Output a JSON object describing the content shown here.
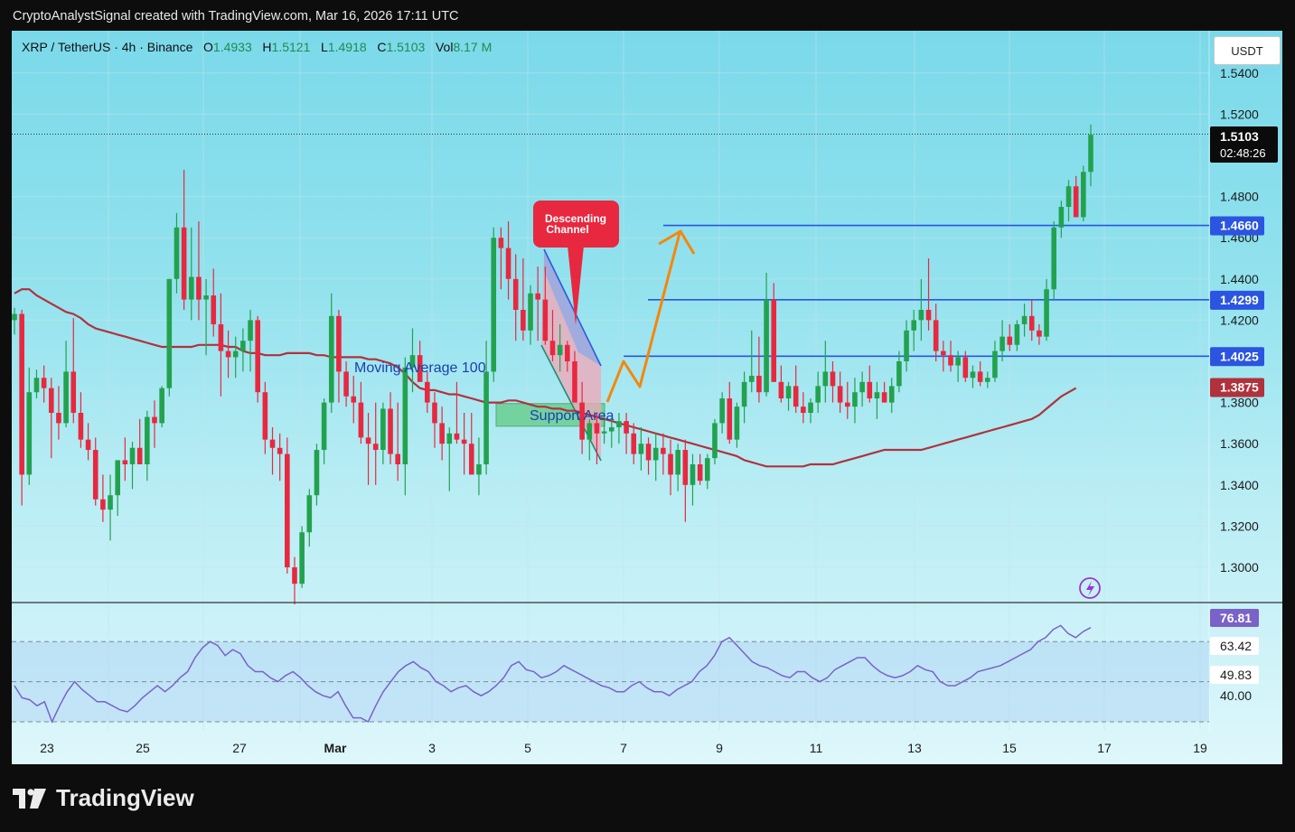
{
  "header": {
    "text": "CryptoAnalystSignal created with TradingView.com, Mar 16, 2026 17:11 UTC"
  },
  "symbol": {
    "title": "XRP / TetherUS · 4h · Binance",
    "o_label": "O",
    "o": "1.4933",
    "h_label": "H",
    "h": "1.5121",
    "l_label": "L",
    "l": "1.4918",
    "c_label": "C",
    "c": "1.5103",
    "vol_label": "Vol",
    "vol": "8.17 M"
  },
  "currency": "USDT",
  "footer": {
    "brand": "TradingView"
  },
  "colors": {
    "up": "#22a24e",
    "down": "#e8283f",
    "ma": "#b0323c",
    "levels": "#2b55e0",
    "rsi": "#7a62c8",
    "arrow": "#f5870a"
  },
  "chart_data": [
    {
      "type": "candlestick",
      "ylim": [
        1.28,
        1.56
      ],
      "grid": true,
      "y_ticks": [
        "1.5400",
        "1.5200",
        "1.4800",
        "1.4600",
        "1.4400",
        "1.4200",
        "1.3800",
        "1.3600",
        "1.3400",
        "1.3200",
        "1.3000"
      ],
      "x_ticks": [
        "23",
        "25",
        "27",
        "Mar",
        "3",
        "5",
        "7",
        "9",
        "11",
        "13",
        "15",
        "17",
        "19"
      ],
      "price_labels": [
        {
          "value": "1.5103",
          "sub": "02:48:26",
          "kind": "last"
        },
        {
          "value": "1.4660",
          "kind": "level"
        },
        {
          "value": "1.4299",
          "kind": "level"
        },
        {
          "value": "1.4025",
          "kind": "level"
        },
        {
          "value": "1.3875",
          "kind": "ma"
        }
      ],
      "horizontal_levels": [
        1.466,
        1.4299,
        1.4025
      ],
      "annotations": {
        "callout": "Descending Channel",
        "ma_label": "Moving Average 100",
        "support_label": "Support Area"
      },
      "candles_ohlc": [
        [
          1.42,
          1.426,
          1.413,
          1.423
        ],
        [
          1.423,
          1.425,
          1.33,
          1.345
        ],
        [
          1.345,
          1.397,
          1.34,
          1.385
        ],
        [
          1.385,
          1.396,
          1.382,
          1.392
        ],
        [
          1.392,
          1.398,
          1.38,
          1.387
        ],
        [
          1.387,
          1.392,
          1.353,
          1.375
        ],
        [
          1.375,
          1.388,
          1.362,
          1.37
        ],
        [
          1.37,
          1.41,
          1.368,
          1.395
        ],
        [
          1.395,
          1.421,
          1.37,
          1.375
        ],
        [
          1.375,
          1.385,
          1.358,
          1.362
        ],
        [
          1.362,
          1.37,
          1.352,
          1.357
        ],
        [
          1.357,
          1.363,
          1.33,
          1.333
        ],
        [
          1.333,
          1.345,
          1.322,
          1.328
        ],
        [
          1.328,
          1.345,
          1.313,
          1.335
        ],
        [
          1.335,
          1.352,
          1.325,
          1.352
        ],
        [
          1.352,
          1.363,
          1.342,
          1.35
        ],
        [
          1.35,
          1.361,
          1.338,
          1.358
        ],
        [
          1.358,
          1.372,
          1.352,
          1.35
        ],
        [
          1.35,
          1.376,
          1.342,
          1.373
        ],
        [
          1.373,
          1.381,
          1.358,
          1.37
        ],
        [
          1.37,
          1.388,
          1.368,
          1.387
        ],
        [
          1.387,
          1.433,
          1.383,
          1.44
        ],
        [
          1.44,
          1.472,
          1.433,
          1.465
        ],
        [
          1.465,
          1.493,
          1.425,
          1.43
        ],
        [
          1.43,
          1.465,
          1.42,
          1.441
        ],
        [
          1.441,
          1.468,
          1.42,
          1.43
        ],
        [
          1.43,
          1.44,
          1.403,
          1.432
        ],
        [
          1.432,
          1.445,
          1.412,
          1.418
        ],
        [
          1.418,
          1.433,
          1.383,
          1.405
        ],
        [
          1.405,
          1.415,
          1.392,
          1.402
        ],
        [
          1.402,
          1.412,
          1.392,
          1.405
        ],
        [
          1.405,
          1.416,
          1.395,
          1.41
        ],
        [
          1.41,
          1.425,
          1.395,
          1.42
        ],
        [
          1.42,
          1.422,
          1.38,
          1.385
        ],
        [
          1.385,
          1.39,
          1.355,
          1.362
        ],
        [
          1.362,
          1.368,
          1.345,
          1.358
        ],
        [
          1.358,
          1.365,
          1.342,
          1.355
        ],
        [
          1.355,
          1.363,
          1.297,
          1.3
        ],
        [
          1.3,
          1.305,
          1.282,
          1.292
        ],
        [
          1.292,
          1.32,
          1.29,
          1.317
        ],
        [
          1.317,
          1.338,
          1.31,
          1.335
        ],
        [
          1.335,
          1.36,
          1.33,
          1.357
        ],
        [
          1.357,
          1.382,
          1.35,
          1.38
        ],
        [
          1.38,
          1.433,
          1.375,
          1.422
        ],
        [
          1.422,
          1.425,
          1.38,
          1.395
        ],
        [
          1.395,
          1.4,
          1.378,
          1.383
        ],
        [
          1.383,
          1.393,
          1.37,
          1.38
        ],
        [
          1.38,
          1.39,
          1.36,
          1.363
        ],
        [
          1.363,
          1.375,
          1.34,
          1.36
        ],
        [
          1.36,
          1.38,
          1.34,
          1.357
        ],
        [
          1.357,
          1.38,
          1.35,
          1.377
        ],
        [
          1.377,
          1.385,
          1.35,
          1.355
        ],
        [
          1.355,
          1.38,
          1.342,
          1.35
        ],
        [
          1.35,
          1.402,
          1.335,
          1.397
        ],
        [
          1.397,
          1.416,
          1.385,
          1.403
        ],
        [
          1.403,
          1.41,
          1.39,
          1.39
        ],
        [
          1.39,
          1.395,
          1.375,
          1.38
        ],
        [
          1.38,
          1.385,
          1.358,
          1.37
        ],
        [
          1.37,
          1.378,
          1.352,
          1.36
        ],
        [
          1.36,
          1.368,
          1.337,
          1.365
        ],
        [
          1.365,
          1.39,
          1.36,
          1.362
        ],
        [
          1.362,
          1.375,
          1.345,
          1.36
        ],
        [
          1.36,
          1.375,
          1.355,
          1.345
        ],
        [
          1.345,
          1.363,
          1.335,
          1.35
        ],
        [
          1.35,
          1.41,
          1.345,
          1.395
        ],
        [
          1.395,
          1.465,
          1.39,
          1.46
        ],
        [
          1.46,
          1.465,
          1.435,
          1.455
        ],
        [
          1.455,
          1.468,
          1.43,
          1.44
        ],
        [
          1.44,
          1.452,
          1.41,
          1.425
        ],
        [
          1.425,
          1.45,
          1.41,
          1.415
        ],
        [
          1.415,
          1.437,
          1.408,
          1.433
        ],
        [
          1.433,
          1.446,
          1.41,
          1.43
        ],
        [
          1.43,
          1.446,
          1.408,
          1.41
        ],
        [
          1.41,
          1.425,
          1.4,
          1.403
        ],
        [
          1.403,
          1.418,
          1.395,
          1.408
        ],
        [
          1.408,
          1.41,
          1.395,
          1.4
        ],
        [
          1.4,
          1.405,
          1.38,
          1.38
        ],
        [
          1.38,
          1.39,
          1.355,
          1.362
        ],
        [
          1.362,
          1.372,
          1.352,
          1.37
        ],
        [
          1.37,
          1.375,
          1.35,
          1.365
        ],
        [
          1.365,
          1.375,
          1.36,
          1.366
        ],
        [
          1.366,
          1.372,
          1.358,
          1.368
        ],
        [
          1.368,
          1.375,
          1.36,
          1.371
        ],
        [
          1.371,
          1.375,
          1.355,
          1.365
        ],
        [
          1.365,
          1.37,
          1.35,
          1.355
        ],
        [
          1.355,
          1.368,
          1.347,
          1.36
        ],
        [
          1.36,
          1.363,
          1.345,
          1.352
        ],
        [
          1.352,
          1.365,
          1.342,
          1.358
        ],
        [
          1.358,
          1.365,
          1.345,
          1.355
        ],
        [
          1.355,
          1.362,
          1.335,
          1.345
        ],
        [
          1.345,
          1.36,
          1.337,
          1.357
        ],
        [
          1.357,
          1.362,
          1.322,
          1.34
        ],
        [
          1.34,
          1.355,
          1.33,
          1.35
        ],
        [
          1.35,
          1.355,
          1.34,
          1.342
        ],
        [
          1.342,
          1.355,
          1.338,
          1.353
        ],
        [
          1.353,
          1.372,
          1.35,
          1.37
        ],
        [
          1.37,
          1.385,
          1.365,
          1.382
        ],
        [
          1.382,
          1.39,
          1.36,
          1.362
        ],
        [
          1.362,
          1.38,
          1.358,
          1.378
        ],
        [
          1.378,
          1.395,
          1.37,
          1.39
        ],
        [
          1.39,
          1.415,
          1.385,
          1.393
        ],
        [
          1.393,
          1.412,
          1.38,
          1.385
        ],
        [
          1.385,
          1.443,
          1.383,
          1.43
        ],
        [
          1.43,
          1.438,
          1.39,
          1.39
        ],
        [
          1.39,
          1.398,
          1.38,
          1.382
        ],
        [
          1.382,
          1.39,
          1.376,
          1.388
        ],
        [
          1.388,
          1.398,
          1.375,
          1.378
        ],
        [
          1.378,
          1.385,
          1.37,
          1.375
        ],
        [
          1.375,
          1.382,
          1.37,
          1.38
        ],
        [
          1.38,
          1.395,
          1.375,
          1.388
        ],
        [
          1.388,
          1.41,
          1.38,
          1.395
        ],
        [
          1.395,
          1.4,
          1.38,
          1.388
        ],
        [
          1.388,
          1.395,
          1.375,
          1.38
        ],
        [
          1.38,
          1.39,
          1.372,
          1.378
        ],
        [
          1.378,
          1.392,
          1.37,
          1.385
        ],
        [
          1.385,
          1.395,
          1.378,
          1.39
        ],
        [
          1.39,
          1.398,
          1.38,
          1.382
        ],
        [
          1.382,
          1.39,
          1.372,
          1.385
        ],
        [
          1.385,
          1.39,
          1.38,
          1.38
        ],
        [
          1.38,
          1.392,
          1.375,
          1.388
        ],
        [
          1.388,
          1.405,
          1.385,
          1.4
        ],
        [
          1.4,
          1.42,
          1.395,
          1.415
        ],
        [
          1.415,
          1.425,
          1.405,
          1.42
        ],
        [
          1.42,
          1.44,
          1.41,
          1.425
        ],
        [
          1.425,
          1.45,
          1.415,
          1.42
        ],
        [
          1.42,
          1.428,
          1.4,
          1.405
        ],
        [
          1.405,
          1.41,
          1.395,
          1.403
        ],
        [
          1.403,
          1.41,
          1.395,
          1.398
        ],
        [
          1.398,
          1.405,
          1.39,
          1.402
        ],
        [
          1.402,
          1.405,
          1.39,
          1.392
        ],
        [
          1.392,
          1.398,
          1.387,
          1.395
        ],
        [
          1.395,
          1.4,
          1.388,
          1.39
        ],
        [
          1.39,
          1.395,
          1.387,
          1.392
        ],
        [
          1.392,
          1.41,
          1.39,
          1.405
        ],
        [
          1.405,
          1.42,
          1.4,
          1.412
        ],
        [
          1.412,
          1.418,
          1.405,
          1.408
        ],
        [
          1.408,
          1.42,
          1.405,
          1.418
        ],
        [
          1.418,
          1.428,
          1.412,
          1.422
        ],
        [
          1.422,
          1.43,
          1.41,
          1.415
        ],
        [
          1.415,
          1.418,
          1.408,
          1.412
        ],
        [
          1.412,
          1.44,
          1.41,
          1.435
        ],
        [
          1.435,
          1.468,
          1.43,
          1.465
        ],
        [
          1.465,
          1.478,
          1.46,
          1.475
        ],
        [
          1.475,
          1.488,
          1.468,
          1.485
        ],
        [
          1.485,
          1.49,
          1.47,
          1.47
        ],
        [
          1.47,
          1.495,
          1.468,
          1.492
        ],
        [
          1.492,
          1.515,
          1.485,
          1.51
        ]
      ],
      "ma100": [
        1.433,
        1.435,
        1.435,
        1.432,
        1.43,
        1.428,
        1.426,
        1.424,
        1.423,
        1.421,
        1.418,
        1.416,
        1.415,
        1.414,
        1.413,
        1.412,
        1.411,
        1.41,
        1.409,
        1.408,
        1.407,
        1.407,
        1.407,
        1.407,
        1.407,
        1.408,
        1.408,
        1.408,
        1.408,
        1.407,
        1.407,
        1.405,
        1.404,
        1.404,
        1.403,
        1.403,
        1.403,
        1.404,
        1.404,
        1.404,
        1.404,
        1.403,
        1.403,
        1.402,
        1.402,
        1.402,
        1.402,
        1.402,
        1.401,
        1.401,
        1.4,
        1.399,
        1.397,
        1.394,
        1.39,
        1.387,
        1.386,
        1.386,
        1.385,
        1.384,
        1.384,
        1.383,
        1.382,
        1.381,
        1.38,
        1.38,
        1.38,
        1.381,
        1.381,
        1.38,
        1.379,
        1.378,
        1.378,
        1.377,
        1.377,
        1.376,
        1.376,
        1.375,
        1.374,
        1.373,
        1.372,
        1.371,
        1.37,
        1.369,
        1.368,
        1.367,
        1.366,
        1.365,
        1.364,
        1.363,
        1.362,
        1.361,
        1.36,
        1.359,
        1.358,
        1.357,
        1.356,
        1.355,
        1.354,
        1.352,
        1.351,
        1.35,
        1.349,
        1.349,
        1.349,
        1.349,
        1.349,
        1.349,
        1.35,
        1.35,
        1.35,
        1.35,
        1.351,
        1.352,
        1.353,
        1.354,
        1.355,
        1.356,
        1.357,
        1.357,
        1.357,
        1.357,
        1.357,
        1.357,
        1.358,
        1.359,
        1.36,
        1.361,
        1.362,
        1.363,
        1.364,
        1.365,
        1.366,
        1.367,
        1.368,
        1.369,
        1.37,
        1.371,
        1.372,
        1.374,
        1.377,
        1.38,
        1.383,
        1.385,
        1.387
      ],
      "rsi": {
        "ticks": [
          "76.81",
          "63.42",
          "49.83",
          "40.00"
        ],
        "values": [
          48,
          42,
          41,
          38,
          40,
          30,
          38,
          45,
          50,
          46,
          43,
          40,
          40,
          38,
          36,
          35,
          38,
          42,
          45,
          48,
          45,
          48,
          52,
          55,
          62,
          67,
          70,
          68,
          63,
          66,
          64,
          58,
          55,
          55,
          52,
          50,
          53,
          55,
          52,
          48,
          45,
          43,
          42,
          45,
          38,
          32,
          32,
          30,
          38,
          45,
          50,
          55,
          58,
          60,
          57,
          55,
          50,
          48,
          45,
          47,
          48,
          45,
          43,
          45,
          48,
          52,
          58,
          60,
          56,
          55,
          52,
          53,
          55,
          58,
          56,
          54,
          52,
          50,
          48,
          47,
          45,
          45,
          48,
          50,
          47,
          45,
          45,
          43,
          46,
          48,
          50,
          55,
          58,
          63,
          70,
          72,
          68,
          64,
          60,
          58,
          57,
          55,
          53,
          52,
          55,
          55,
          52,
          50,
          52,
          56,
          58,
          60,
          62,
          62,
          58,
          55,
          53,
          52,
          53,
          55,
          58,
          56,
          55,
          50,
          48,
          48,
          50,
          52,
          55,
          56,
          57,
          58,
          60,
          62,
          64,
          66,
          70,
          72,
          76,
          78,
          74,
          72,
          75,
          77
        ]
      }
    }
  ]
}
